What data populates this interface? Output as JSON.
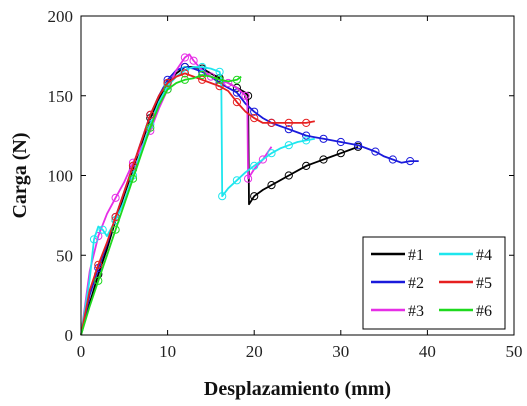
{
  "chart_data": {
    "type": "line",
    "xlabel": "Desplazamiento (mm)",
    "ylabel": "Carga (N)",
    "xlim": [
      0,
      50
    ],
    "ylim": [
      0,
      200
    ],
    "xticks": [
      0,
      10,
      20,
      30,
      40,
      50
    ],
    "yticks": [
      0,
      50,
      100,
      150,
      200
    ],
    "grid": false,
    "legend_position": "bottom-right",
    "legend_columns": 2,
    "series": [
      {
        "name": "#1",
        "color": "#000000",
        "x": [
          0,
          1,
          2,
          3,
          4,
          5,
          6,
          7,
          8,
          9,
          10,
          11,
          12,
          13,
          14,
          15,
          16,
          17,
          18,
          19,
          19.3,
          19.4,
          20,
          21,
          22,
          23,
          24,
          25,
          26,
          27,
          28,
          29,
          30,
          31,
          32
        ],
        "y": [
          0,
          20,
          38,
          54,
          72,
          88,
          104,
          120,
          136,
          148,
          158,
          164,
          168,
          168,
          167,
          164,
          161,
          158,
          155,
          152,
          150,
          82,
          87,
          91,
          94,
          97,
          100,
          103,
          106,
          108,
          110,
          112,
          114,
          116,
          118
        ]
      },
      {
        "name": "#2",
        "color": "#1a1adb",
        "x": [
          0,
          1,
          2,
          3,
          4,
          5,
          6,
          7,
          8,
          9,
          10,
          11,
          12,
          13,
          14,
          15,
          16,
          17,
          18,
          19,
          20,
          21,
          22,
          23,
          24,
          25,
          26,
          27,
          28,
          29,
          30,
          31,
          32,
          33,
          34,
          35,
          36,
          37,
          38,
          39
        ],
        "y": [
          0,
          25,
          42,
          57,
          74,
          90,
          106,
          122,
          138,
          150,
          160,
          166,
          168,
          167,
          165,
          162,
          158,
          155,
          152,
          145,
          140,
          136,
          133,
          131,
          129,
          127,
          125,
          124,
          123,
          122,
          121,
          120,
          119,
          117,
          115,
          112,
          110,
          108,
          109,
          109
        ]
      },
      {
        "name": "#3",
        "color": "#e62ee6",
        "x": [
          0,
          1,
          2,
          3,
          4,
          5,
          6,
          7,
          8,
          9,
          10,
          11,
          12,
          12.5,
          13,
          14,
          15,
          16,
          17,
          18,
          19,
          19.2,
          19.3,
          20,
          21,
          22
        ],
        "y": [
          0,
          40,
          62,
          76,
          86,
          96,
          108,
          118,
          128,
          142,
          154,
          166,
          174,
          176,
          172,
          166,
          162,
          160,
          158,
          155,
          150,
          146,
          98,
          104,
          110,
          118
        ]
      },
      {
        "name": "#4",
        "color": "#1ee6ee",
        "x": [
          0,
          1,
          1.5,
          2,
          2.5,
          3,
          4,
          5,
          6,
          7,
          8,
          9,
          10,
          11,
          12,
          13,
          14,
          15,
          16,
          16.2,
          16.3,
          17,
          18,
          19,
          20,
          21,
          22,
          23,
          24,
          25,
          26,
          27
        ],
        "y": [
          0,
          35,
          60,
          68,
          66,
          62,
          72,
          84,
          100,
          116,
          132,
          146,
          156,
          162,
          166,
          168,
          168,
          167,
          165,
          160,
          87,
          92,
          97,
          102,
          106,
          110,
          114,
          117,
          119,
          121,
          122,
          123
        ]
      },
      {
        "name": "#5",
        "color": "#e62020",
        "x": [
          0,
          1,
          2,
          3,
          4,
          5,
          6,
          7,
          8,
          9,
          10,
          11,
          12,
          13,
          14,
          15,
          16,
          17,
          18,
          19,
          20,
          21,
          22,
          23,
          24,
          25,
          26,
          27
        ],
        "y": [
          0,
          28,
          44,
          58,
          74,
          90,
          106,
          122,
          138,
          150,
          158,
          162,
          164,
          162,
          160,
          158,
          156,
          153,
          146,
          140,
          136,
          133,
          133,
          133,
          133,
          133,
          133,
          134
        ]
      },
      {
        "name": "#6",
        "color": "#1ed91e",
        "x": [
          0,
          1,
          2,
          3,
          4,
          5,
          6,
          7,
          8,
          9,
          10,
          11,
          12,
          13,
          14,
          15,
          16,
          17,
          18,
          18.5
        ],
        "y": [
          0,
          18,
          34,
          50,
          66,
          82,
          98,
          114,
          130,
          144,
          154,
          158,
          160,
          161,
          163,
          162,
          160,
          159,
          160,
          162
        ]
      }
    ]
  }
}
